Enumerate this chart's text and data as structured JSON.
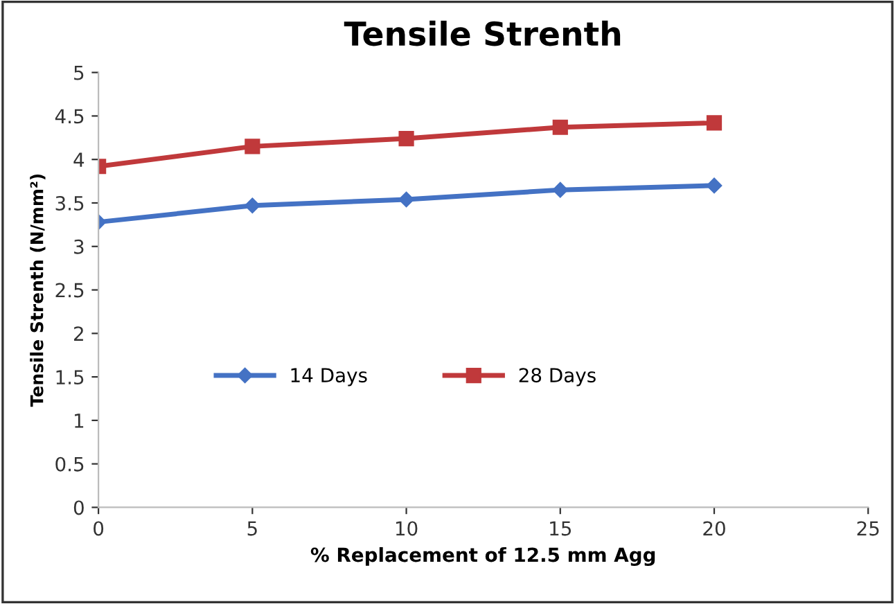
{
  "chart_data": {
    "type": "line",
    "title": "Tensile Strenth",
    "xlabel": "% Replacement of 12.5 mm Agg",
    "ylabel": "Tensile Strenth (N/mm²)",
    "x": [
      0,
      5,
      10,
      15,
      20
    ],
    "series": [
      {
        "name": "14 Days",
        "color": "#4472c4",
        "marker": "diamond",
        "values": [
          3.28,
          3.47,
          3.54,
          3.65,
          3.7
        ]
      },
      {
        "name": "28 Days",
        "color": "#c0393b",
        "marker": "square",
        "values": [
          3.92,
          4.15,
          4.24,
          4.37,
          4.42
        ]
      }
    ],
    "xlim": [
      0,
      25
    ],
    "xticks": [
      0,
      5,
      10,
      15,
      20,
      25
    ],
    "ylim": [
      0,
      5
    ],
    "yticks": [
      0,
      0.5,
      1,
      1.5,
      2,
      2.5,
      3,
      3.5,
      4,
      4.5,
      5
    ],
    "grid": false,
    "legend": "center",
    "line_style": "solid"
  }
}
